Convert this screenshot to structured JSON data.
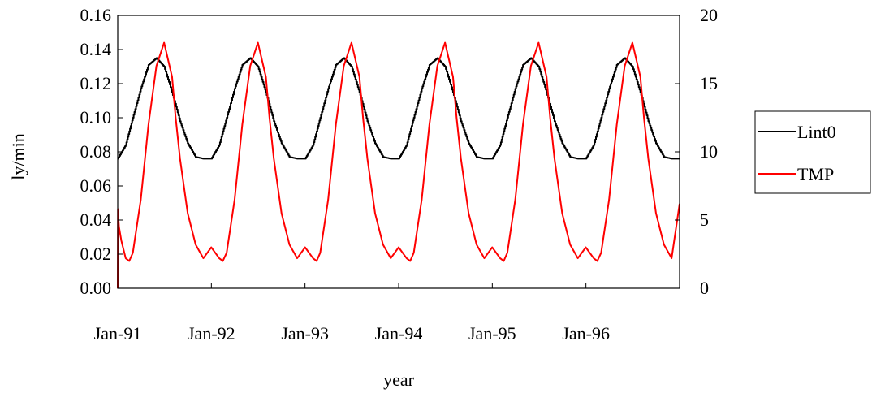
{
  "chart_data": {
    "type": "line",
    "xlabel": "year",
    "ylabel": "ly/min",
    "x_tick_labels": [
      "Jan-91",
      "Jan-92",
      "Jan-93",
      "Jan-94",
      "Jan-95",
      "Jan-96"
    ],
    "x_range": [
      "1991-01-01",
      "1997-01-01"
    ],
    "y_left_range": [
      0,
      0.16
    ],
    "y_left_ticks": [
      "0.00",
      "0.02",
      "0.04",
      "0.06",
      "0.08",
      "0.10",
      "0.12",
      "0.14",
      "0.16"
    ],
    "y_right_range": [
      0,
      20
    ],
    "y_right_ticks": [
      "0",
      "5",
      "10",
      "15",
      "20"
    ],
    "grid": false,
    "legend_position": "right",
    "series": [
      {
        "name": "Lint0",
        "axis": "left",
        "color": "#000000",
        "style": "step",
        "x": [
          "1991-01-01",
          "1991-02-01",
          "1991-03-01",
          "1991-04-01",
          "1991-05-01",
          "1991-06-01",
          "1991-07-01",
          "1991-08-01",
          "1991-09-01",
          "1991-10-01",
          "1991-11-01",
          "1991-12-01",
          "1992-01-01",
          "1992-02-01",
          "1992-03-01",
          "1992-04-01",
          "1992-05-01",
          "1992-06-01",
          "1992-07-01",
          "1992-08-01",
          "1992-09-01",
          "1992-10-01",
          "1992-11-01",
          "1992-12-01",
          "1993-01-01",
          "1993-02-01",
          "1993-03-01",
          "1993-04-01",
          "1993-05-01",
          "1993-06-01",
          "1993-07-01",
          "1993-08-01",
          "1993-09-01",
          "1993-10-01",
          "1993-11-01",
          "1993-12-01",
          "1994-01-01",
          "1994-02-01",
          "1994-03-01",
          "1994-04-01",
          "1994-05-01",
          "1994-06-01",
          "1994-07-01",
          "1994-08-01",
          "1994-09-01",
          "1994-10-01",
          "1994-11-01",
          "1994-12-01",
          "1995-01-01",
          "1995-02-01",
          "1995-03-01",
          "1995-04-01",
          "1995-05-01",
          "1995-06-01",
          "1995-07-01",
          "1995-08-01",
          "1995-09-01",
          "1995-10-01",
          "1995-11-01",
          "1995-12-01",
          "1996-01-01",
          "1996-02-01",
          "1996-03-01",
          "1996-04-01",
          "1996-05-01",
          "1996-06-01",
          "1996-07-01",
          "1996-08-01",
          "1996-09-01",
          "1996-10-01",
          "1996-11-01",
          "1996-12-01",
          "1997-01-01"
        ],
        "values": [
          0.076,
          0.084,
          0.1,
          0.117,
          0.131,
          0.135,
          0.13,
          0.115,
          0.098,
          0.085,
          0.077,
          0.076,
          0.076,
          0.084,
          0.1,
          0.117,
          0.131,
          0.135,
          0.13,
          0.115,
          0.098,
          0.085,
          0.077,
          0.076,
          0.076,
          0.084,
          0.1,
          0.117,
          0.131,
          0.135,
          0.13,
          0.115,
          0.098,
          0.085,
          0.077,
          0.076,
          0.076,
          0.084,
          0.1,
          0.117,
          0.131,
          0.135,
          0.13,
          0.115,
          0.098,
          0.085,
          0.077,
          0.076,
          0.076,
          0.084,
          0.1,
          0.117,
          0.131,
          0.135,
          0.13,
          0.115,
          0.098,
          0.085,
          0.077,
          0.076,
          0.076,
          0.084,
          0.1,
          0.117,
          0.131,
          0.135,
          0.13,
          0.115,
          0.098,
          0.085,
          0.077,
          0.076,
          0.076
        ]
      },
      {
        "name": "TMP",
        "axis": "right",
        "color": "#ff0000",
        "style": "line",
        "x": [
          "1991-01-01",
          "1991-01-02",
          "1991-01-03",
          "1991-01-06",
          "1991-01-15",
          "1991-02-01",
          "1991-02-15",
          "1991-03-01",
          "1991-04-01",
          "1991-05-01",
          "1991-06-01",
          "1991-07-01",
          "1991-08-01",
          "1991-08-15",
          "1991-09-01",
          "1991-10-01",
          "1991-11-01",
          "1991-12-01",
          "1992-01-01",
          "1992-02-01",
          "1992-02-15",
          "1992-03-01",
          "1992-04-01",
          "1992-05-01",
          "1992-06-01",
          "1992-07-01",
          "1992-08-01",
          "1992-08-15",
          "1992-09-01",
          "1992-10-01",
          "1992-11-01",
          "1992-12-01",
          "1993-01-01",
          "1993-02-01",
          "1993-02-15",
          "1993-03-01",
          "1993-04-01",
          "1993-05-01",
          "1993-06-01",
          "1993-07-01",
          "1993-08-01",
          "1993-08-15",
          "1993-09-01",
          "1993-10-01",
          "1993-11-01",
          "1993-12-01",
          "1994-01-01",
          "1994-02-01",
          "1994-02-15",
          "1994-03-01",
          "1994-04-01",
          "1994-05-01",
          "1994-06-01",
          "1994-07-01",
          "1994-08-01",
          "1994-08-15",
          "1994-09-01",
          "1994-10-01",
          "1994-11-01",
          "1994-12-01",
          "1995-01-01",
          "1995-02-01",
          "1995-02-15",
          "1995-03-01",
          "1995-04-01",
          "1995-05-01",
          "1995-06-01",
          "1995-07-01",
          "1995-08-01",
          "1995-08-15",
          "1995-09-01",
          "1995-10-01",
          "1995-11-01",
          "1995-12-01",
          "1996-01-01",
          "1996-02-01",
          "1996-02-15",
          "1996-03-01",
          "1996-04-01",
          "1996-05-01",
          "1996-06-01",
          "1996-07-01",
          "1996-08-01",
          "1996-08-15",
          "1996-09-01",
          "1996-10-01",
          "1996-11-01",
          "1996-12-01",
          "1997-01-01"
        ],
        "values": [
          0,
          5.8,
          5.3,
          4.5,
          3.5,
          2.2,
          2.0,
          2.6,
          6.5,
          12.0,
          16.3,
          18.0,
          15.5,
          12.5,
          9.5,
          5.5,
          3.2,
          2.2,
          3.0,
          2.2,
          2.0,
          2.6,
          6.5,
          12.0,
          16.3,
          18.0,
          15.5,
          12.5,
          9.5,
          5.5,
          3.2,
          2.2,
          3.0,
          2.2,
          2.0,
          2.6,
          6.5,
          12.0,
          16.3,
          18.0,
          15.5,
          12.5,
          9.5,
          5.5,
          3.2,
          2.2,
          3.0,
          2.2,
          2.0,
          2.6,
          6.5,
          12.0,
          16.3,
          18.0,
          15.5,
          12.5,
          9.5,
          5.5,
          3.2,
          2.2,
          3.0,
          2.2,
          2.0,
          2.6,
          6.5,
          12.0,
          16.3,
          18.0,
          15.5,
          12.5,
          9.5,
          5.5,
          3.2,
          2.2,
          3.0,
          2.2,
          2.0,
          2.6,
          6.5,
          12.0,
          16.3,
          18.0,
          15.5,
          12.5,
          9.5,
          5.5,
          3.2,
          2.2,
          6.2
        ]
      }
    ]
  }
}
